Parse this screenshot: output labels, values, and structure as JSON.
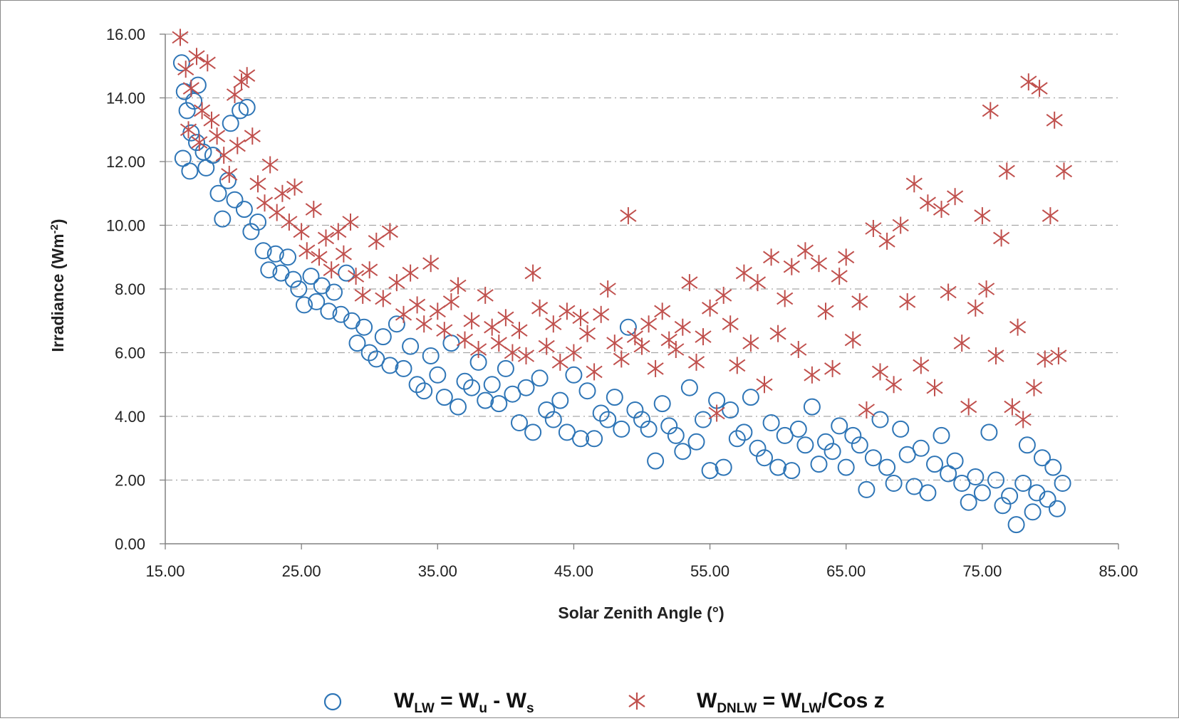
{
  "chart_data": {
    "type": "scatter",
    "xlabel": "Solar  Zenith Angle (°)",
    "ylabel_main": "Irradiance  (Wm",
    "ylabel_sup": "-2",
    "ylabel_close": ")",
    "xlim": [
      15,
      85
    ],
    "ylim": [
      0,
      16
    ],
    "xticks": [
      15,
      25,
      35,
      45,
      55,
      65,
      75,
      85
    ],
    "xtick_labels": [
      "15.00",
      "25.00",
      "35.00",
      "45.00",
      "55.00",
      "65.00",
      "75.00",
      "85.00"
    ],
    "yticks": [
      0,
      2,
      4,
      6,
      8,
      10,
      12,
      14,
      16
    ],
    "ytick_labels": [
      "0.00",
      "2.00",
      "4.00",
      "6.00",
      "8.00",
      "10.00",
      "12.00",
      "14.00",
      "16.00"
    ],
    "grid": "horizontal dashed",
    "legend_position": "bottom",
    "series": [
      {
        "name": "W_LW = W_u - W_s",
        "marker": "circle",
        "color": "#2E75B6",
        "points": [
          [
            16.2,
            15.1
          ],
          [
            16.4,
            14.2
          ],
          [
            16.6,
            13.6
          ],
          [
            16.9,
            12.9
          ],
          [
            17.1,
            13.9
          ],
          [
            17.4,
            14.4
          ],
          [
            17.8,
            12.3
          ],
          [
            16.3,
            12.1
          ],
          [
            16.8,
            11.7
          ],
          [
            17.3,
            12.6
          ],
          [
            18.0,
            11.8
          ],
          [
            18.5,
            12.2
          ],
          [
            18.9,
            11.0
          ],
          [
            19.2,
            10.2
          ],
          [
            19.6,
            11.4
          ],
          [
            20.1,
            10.8
          ],
          [
            20.5,
            13.6
          ],
          [
            21.0,
            13.7
          ],
          [
            19.8,
            13.2
          ],
          [
            20.8,
            10.5
          ],
          [
            21.3,
            9.8
          ],
          [
            21.8,
            10.1
          ],
          [
            22.2,
            9.2
          ],
          [
            22.6,
            8.6
          ],
          [
            23.1,
            9.1
          ],
          [
            23.5,
            8.5
          ],
          [
            24.0,
            9.0
          ],
          [
            24.4,
            8.3
          ],
          [
            24.8,
            8.0
          ],
          [
            25.2,
            7.5
          ],
          [
            25.7,
            8.4
          ],
          [
            26.1,
            7.6
          ],
          [
            26.5,
            8.1
          ],
          [
            27.0,
            7.3
          ],
          [
            27.4,
            7.9
          ],
          [
            27.9,
            7.2
          ],
          [
            28.3,
            8.5
          ],
          [
            28.7,
            7.0
          ],
          [
            29.1,
            6.3
          ],
          [
            29.6,
            6.8
          ],
          [
            30.0,
            6.0
          ],
          [
            30.5,
            5.8
          ],
          [
            31.0,
            6.5
          ],
          [
            31.5,
            5.6
          ],
          [
            32.0,
            6.9
          ],
          [
            32.5,
            5.5
          ],
          [
            33.0,
            6.2
          ],
          [
            33.5,
            5.0
          ],
          [
            34.0,
            4.8
          ],
          [
            34.5,
            5.9
          ],
          [
            35.0,
            5.3
          ],
          [
            35.5,
            4.6
          ],
          [
            36.0,
            6.3
          ],
          [
            36.5,
            4.3
          ],
          [
            37.0,
            5.1
          ],
          [
            37.5,
            4.9
          ],
          [
            38.0,
            5.7
          ],
          [
            38.5,
            4.5
          ],
          [
            39.0,
            5.0
          ],
          [
            39.5,
            4.4
          ],
          [
            40.0,
            5.5
          ],
          [
            40.5,
            4.7
          ],
          [
            41.0,
            3.8
          ],
          [
            41.5,
            4.9
          ],
          [
            42.0,
            3.5
          ],
          [
            42.5,
            5.2
          ],
          [
            43.0,
            4.2
          ],
          [
            43.5,
            3.9
          ],
          [
            44.0,
            4.5
          ],
          [
            44.5,
            3.5
          ],
          [
            45.0,
            5.3
          ],
          [
            45.5,
            3.3
          ],
          [
            46.0,
            4.8
          ],
          [
            46.5,
            3.3
          ],
          [
            47.0,
            4.1
          ],
          [
            47.5,
            3.9
          ],
          [
            48.0,
            4.6
          ],
          [
            48.5,
            3.6
          ],
          [
            49.0,
            6.8
          ],
          [
            49.5,
            4.2
          ],
          [
            50.0,
            3.9
          ],
          [
            50.5,
            3.6
          ],
          [
            51.0,
            2.6
          ],
          [
            51.5,
            4.4
          ],
          [
            52.0,
            3.7
          ],
          [
            52.5,
            3.4
          ],
          [
            53.0,
            2.9
          ],
          [
            53.5,
            4.9
          ],
          [
            54.0,
            3.2
          ],
          [
            54.5,
            3.9
          ],
          [
            55.0,
            2.3
          ],
          [
            55.5,
            4.5
          ],
          [
            56.0,
            2.4
          ],
          [
            56.5,
            4.2
          ],
          [
            57.0,
            3.3
          ],
          [
            57.5,
            3.5
          ],
          [
            58.0,
            4.6
          ],
          [
            58.5,
            3.0
          ],
          [
            59.0,
            2.7
          ],
          [
            59.5,
            3.8
          ],
          [
            60.0,
            2.4
          ],
          [
            60.5,
            3.4
          ],
          [
            61.0,
            2.3
          ],
          [
            61.5,
            3.6
          ],
          [
            62.0,
            3.1
          ],
          [
            62.5,
            4.3
          ],
          [
            63.0,
            2.5
          ],
          [
            63.5,
            3.2
          ],
          [
            64.0,
            2.9
          ],
          [
            64.5,
            3.7
          ],
          [
            65.0,
            2.4
          ],
          [
            65.5,
            3.4
          ],
          [
            66.0,
            3.1
          ],
          [
            66.5,
            1.7
          ],
          [
            67.0,
            2.7
          ],
          [
            67.5,
            3.9
          ],
          [
            68.0,
            2.4
          ],
          [
            68.5,
            1.9
          ],
          [
            69.0,
            3.6
          ],
          [
            69.5,
            2.8
          ],
          [
            70.0,
            1.8
          ],
          [
            70.5,
            3.0
          ],
          [
            71.0,
            1.6
          ],
          [
            71.5,
            2.5
          ],
          [
            72.0,
            3.4
          ],
          [
            72.5,
            2.2
          ],
          [
            73.0,
            2.6
          ],
          [
            73.5,
            1.9
          ],
          [
            74.0,
            1.3
          ],
          [
            74.5,
            2.1
          ],
          [
            75.0,
            1.6
          ],
          [
            75.5,
            3.5
          ],
          [
            76.0,
            2.0
          ],
          [
            76.5,
            1.2
          ],
          [
            77.0,
            1.5
          ],
          [
            77.5,
            0.6
          ],
          [
            78.0,
            1.9
          ],
          [
            78.3,
            3.1
          ],
          [
            78.7,
            1.0
          ],
          [
            79.0,
            1.6
          ],
          [
            79.4,
            2.7
          ],
          [
            79.8,
            1.4
          ],
          [
            80.2,
            2.4
          ],
          [
            80.5,
            1.1
          ],
          [
            80.9,
            1.9
          ]
        ]
      },
      {
        "name": "W_DNLW = W_LW/Cos z",
        "marker": "asterisk",
        "color": "#C0504D",
        "points": [
          [
            16.1,
            15.9
          ],
          [
            16.5,
            14.9
          ],
          [
            16.9,
            14.3
          ],
          [
            17.3,
            15.3
          ],
          [
            17.7,
            13.6
          ],
          [
            18.1,
            15.1
          ],
          [
            16.7,
            13.0
          ],
          [
            17.5,
            12.6
          ],
          [
            18.4,
            13.3
          ],
          [
            18.8,
            12.8
          ],
          [
            19.3,
            12.2
          ],
          [
            19.7,
            11.6
          ],
          [
            20.1,
            14.1
          ],
          [
            20.6,
            14.5
          ],
          [
            21.0,
            14.7
          ],
          [
            20.3,
            12.5
          ],
          [
            21.4,
            12.8
          ],
          [
            21.8,
            11.3
          ],
          [
            22.3,
            10.7
          ],
          [
            22.7,
            11.9
          ],
          [
            23.2,
            10.4
          ],
          [
            23.6,
            11.0
          ],
          [
            24.1,
            10.1
          ],
          [
            24.5,
            11.2
          ],
          [
            25.0,
            9.8
          ],
          [
            25.4,
            9.2
          ],
          [
            25.9,
            10.5
          ],
          [
            26.3,
            9.0
          ],
          [
            26.8,
            9.6
          ],
          [
            27.2,
            8.6
          ],
          [
            27.7,
            9.8
          ],
          [
            28.1,
            9.1
          ],
          [
            28.6,
            10.1
          ],
          [
            29.0,
            8.4
          ],
          [
            29.5,
            7.8
          ],
          [
            30.0,
            8.6
          ],
          [
            30.5,
            9.5
          ],
          [
            31.0,
            7.7
          ],
          [
            31.5,
            9.8
          ],
          [
            32.0,
            8.2
          ],
          [
            32.5,
            7.2
          ],
          [
            33.0,
            8.5
          ],
          [
            33.5,
            7.5
          ],
          [
            34.0,
            6.9
          ],
          [
            34.5,
            8.8
          ],
          [
            35.0,
            7.3
          ],
          [
            35.5,
            6.7
          ],
          [
            36.0,
            7.6
          ],
          [
            36.5,
            8.1
          ],
          [
            37.0,
            6.4
          ],
          [
            37.5,
            7.0
          ],
          [
            38.0,
            6.1
          ],
          [
            38.5,
            7.8
          ],
          [
            39.0,
            6.8
          ],
          [
            39.5,
            6.3
          ],
          [
            40.0,
            7.1
          ],
          [
            40.5,
            6.0
          ],
          [
            41.0,
            6.7
          ],
          [
            41.5,
            5.9
          ],
          [
            42.0,
            8.5
          ],
          [
            42.5,
            7.4
          ],
          [
            43.0,
            6.2
          ],
          [
            43.5,
            6.9
          ],
          [
            44.0,
            5.7
          ],
          [
            44.5,
            7.3
          ],
          [
            45.0,
            6.0
          ],
          [
            45.5,
            7.1
          ],
          [
            46.0,
            6.6
          ],
          [
            46.5,
            5.4
          ],
          [
            47.0,
            7.2
          ],
          [
            47.5,
            8.0
          ],
          [
            48.0,
            6.3
          ],
          [
            48.5,
            5.8
          ],
          [
            49.0,
            10.3
          ],
          [
            49.5,
            6.5
          ],
          [
            50.0,
            6.2
          ],
          [
            50.5,
            6.9
          ],
          [
            51.0,
            5.5
          ],
          [
            51.5,
            7.3
          ],
          [
            52.0,
            6.4
          ],
          [
            52.5,
            6.1
          ],
          [
            53.0,
            6.8
          ],
          [
            53.5,
            8.2
          ],
          [
            54.0,
            5.7
          ],
          [
            54.5,
            6.5
          ],
          [
            55.0,
            7.4
          ],
          [
            55.5,
            4.1
          ],
          [
            56.0,
            7.8
          ],
          [
            56.5,
            6.9
          ],
          [
            57.0,
            5.6
          ],
          [
            57.5,
            8.5
          ],
          [
            58.0,
            6.3
          ],
          [
            58.5,
            8.2
          ],
          [
            59.0,
            5.0
          ],
          [
            59.5,
            9.0
          ],
          [
            60.0,
            6.6
          ],
          [
            60.5,
            7.7
          ],
          [
            61.0,
            8.7
          ],
          [
            61.5,
            6.1
          ],
          [
            62.0,
            9.2
          ],
          [
            62.5,
            5.3
          ],
          [
            63.0,
            8.8
          ],
          [
            63.5,
            7.3
          ],
          [
            64.0,
            5.5
          ],
          [
            64.5,
            8.4
          ],
          [
            65.0,
            9.0
          ],
          [
            65.5,
            6.4
          ],
          [
            66.0,
            7.6
          ],
          [
            66.5,
            4.2
          ],
          [
            67.0,
            9.9
          ],
          [
            67.5,
            5.4
          ],
          [
            68.0,
            9.5
          ],
          [
            68.5,
            5.0
          ],
          [
            69.0,
            10.0
          ],
          [
            69.5,
            7.6
          ],
          [
            70.0,
            11.3
          ],
          [
            70.5,
            5.6
          ],
          [
            71.0,
            10.7
          ],
          [
            71.5,
            4.9
          ],
          [
            72.0,
            10.5
          ],
          [
            72.5,
            7.9
          ],
          [
            73.0,
            10.9
          ],
          [
            73.5,
            6.3
          ],
          [
            74.0,
            4.3
          ],
          [
            74.5,
            7.4
          ],
          [
            75.0,
            10.3
          ],
          [
            75.3,
            8.0
          ],
          [
            75.6,
            13.6
          ],
          [
            76.0,
            5.9
          ],
          [
            76.4,
            9.6
          ],
          [
            76.8,
            11.7
          ],
          [
            77.2,
            4.3
          ],
          [
            77.6,
            6.8
          ],
          [
            78.0,
            3.9
          ],
          [
            78.4,
            14.5
          ],
          [
            78.8,
            4.9
          ],
          [
            79.2,
            14.3
          ],
          [
            79.6,
            5.8
          ],
          [
            80.0,
            10.3
          ],
          [
            80.3,
            13.3
          ],
          [
            80.6,
            5.9
          ],
          [
            81.0,
            11.7
          ]
        ]
      }
    ]
  },
  "legend": [
    {
      "main": "W",
      "sub": "LW",
      "mid": " = W",
      "sub2": "u",
      "mid2": " - W",
      "sub3": "s",
      "tail": ""
    },
    {
      "main": "W",
      "sub": "DNLW",
      "mid": " = W",
      "sub2": "LW",
      "mid2": "/Cos z",
      "sub3": "",
      "tail": ""
    }
  ]
}
